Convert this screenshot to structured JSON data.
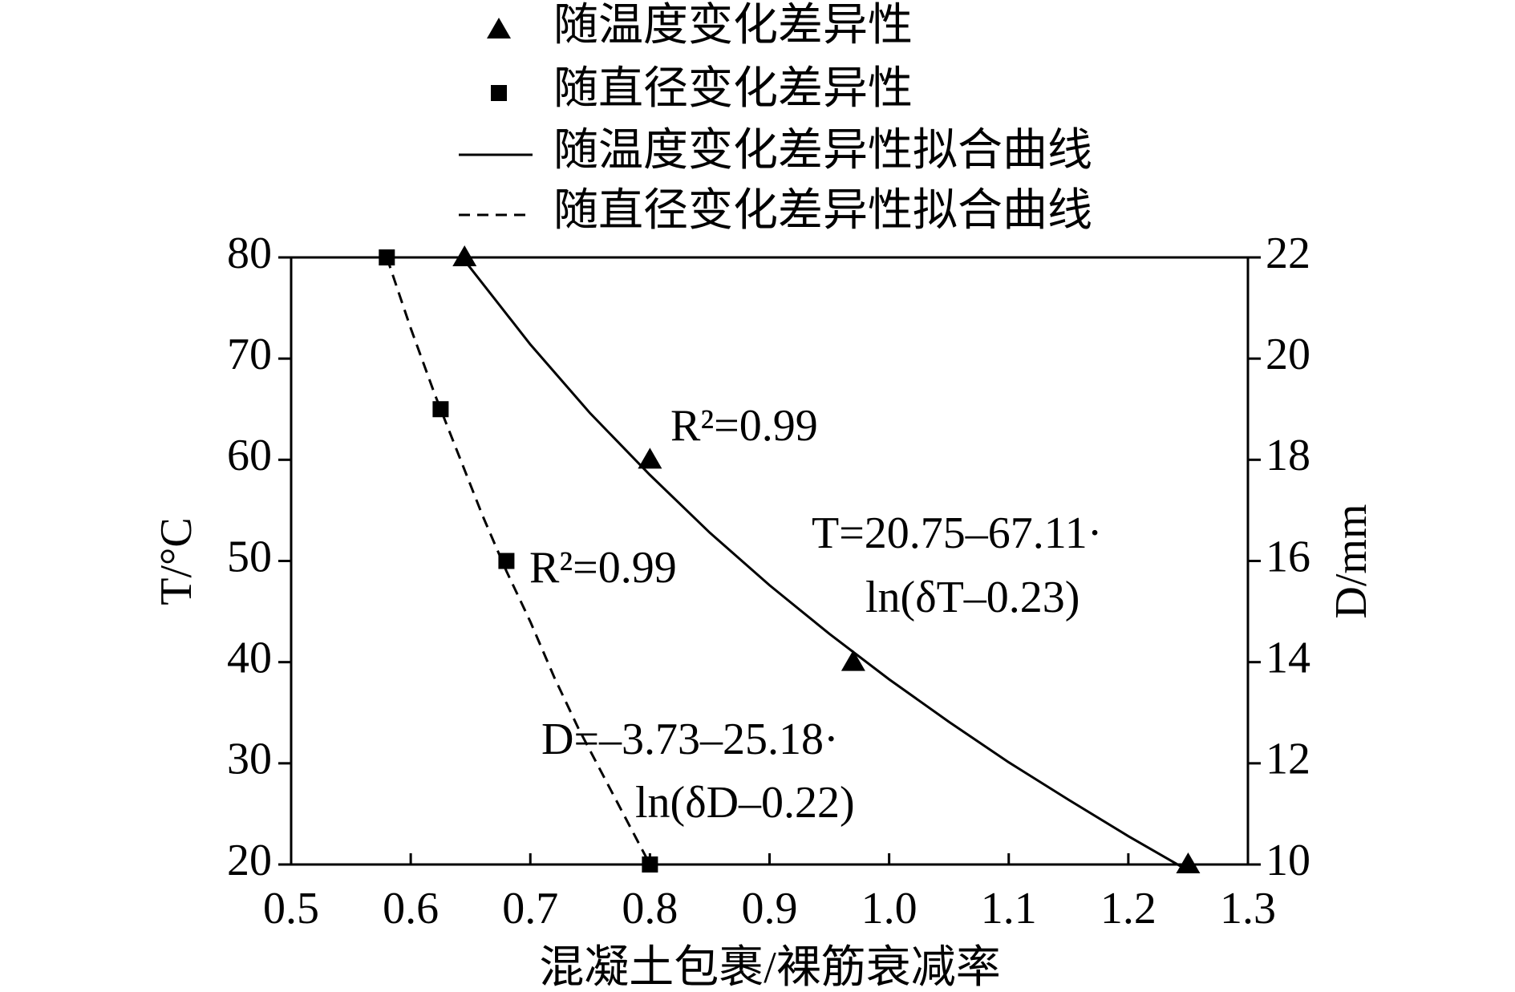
{
  "chart_data": {
    "type": "scatter",
    "xlabel": "混凝土包裹/裸筋衰减率",
    "ylabel": "T/°C",
    "y2label": "D/mm",
    "xlim": [
      0.5,
      1.3
    ],
    "xticks": [
      {
        "value": 0.5,
        "label": "0.5"
      },
      0.6,
      0.7,
      0.8,
      0.9,
      {
        "value": 1.0,
        "label": "1.0"
      },
      1.1,
      1.2,
      1.3
    ],
    "ylim": [
      20,
      80
    ],
    "yticks": [
      20,
      30,
      40,
      50,
      60,
      70,
      80
    ],
    "y2lim": [
      10,
      22
    ],
    "y2ticks": [
      10,
      12,
      14,
      16,
      18,
      20,
      22
    ],
    "series": [
      {
        "name": "随温度变化差异性",
        "marker": "triangle",
        "color": "#000000",
        "x": [
          1.25,
          0.97,
          0.8,
          0.645
        ],
        "values": [
          20,
          40,
          60,
          80
        ]
      },
      {
        "name": "随直径变化差异性",
        "marker": "square",
        "color": "#000000",
        "axis": "y2",
        "x": [
          0.58,
          0.625,
          0.68,
          0.8
        ],
        "values": [
          22,
          19,
          16,
          10
        ]
      },
      {
        "name": "随温度变化差异性拟合曲线",
        "line": "solid",
        "color": "#000000",
        "x": [
          0.645,
          0.7,
          0.75,
          0.8,
          0.85,
          0.9,
          0.95,
          1.0,
          1.05,
          1.1,
          1.15,
          1.2,
          1.25
        ],
        "values": [
          79.7,
          71.4,
          64.6,
          58.5,
          52.8,
          47.6,
          42.8,
          38.3,
          34.1,
          30.1,
          26.4,
          22.8,
          19.4
        ]
      },
      {
        "name": "随直径变化差异性拟合曲线",
        "line": "dashed",
        "color": "#000000",
        "axis": "y2",
        "x": [
          0.58,
          0.6,
          0.62,
          0.64,
          0.66,
          0.68,
          0.7,
          0.72,
          0.74,
          0.76,
          0.78,
          0.8
        ],
        "values": [
          22.0,
          20.6,
          19.3,
          18.1,
          16.9,
          15.8,
          14.8,
          13.7,
          12.7,
          11.8,
          10.9,
          10.0
        ]
      }
    ],
    "annotations": [
      "R²=0.99",
      "T=20.75–67.11·",
      "ln(δT–0.23)",
      "R²=0.99",
      "D=–3.73–25.18·",
      "ln(δD–0.22)"
    ]
  }
}
